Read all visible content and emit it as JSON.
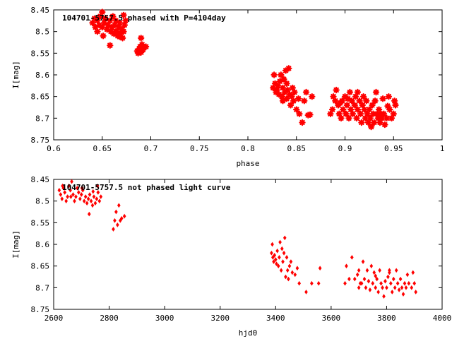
{
  "chart_data": [
    {
      "type": "scatter",
      "title": "104701-5757.5 phased with P=4104day",
      "xlabel": "phase",
      "ylabel": "I[mag]",
      "xlim": [
        0.6,
        1.0
      ],
      "ylim": [
        8.75,
        8.45
      ],
      "y_inverted": true,
      "x_ticks": [
        "0.6",
        "0.65",
        "0.7",
        "0.75",
        "0.8",
        "0.85",
        "0.9",
        "0.95",
        "1"
      ],
      "y_ticks": [
        "8.45",
        "8.5",
        "8.55",
        "8.6",
        "8.65",
        "8.7",
        "8.75"
      ],
      "marker": "star",
      "color": "#ff0000",
      "grid": false,
      "points": [
        [
          0.64,
          8.48
        ],
        [
          0.642,
          8.47
        ],
        [
          0.643,
          8.49
        ],
        [
          0.645,
          8.475
        ],
        [
          0.647,
          8.485
        ],
        [
          0.648,
          8.465
        ],
        [
          0.65,
          8.49
        ],
        [
          0.65,
          8.455
        ],
        [
          0.652,
          8.48
        ],
        [
          0.653,
          8.47
        ],
        [
          0.655,
          8.495
        ],
        [
          0.656,
          8.485
        ],
        [
          0.658,
          8.475
        ],
        [
          0.659,
          8.5
        ],
        [
          0.66,
          8.49
        ],
        [
          0.661,
          8.465
        ],
        [
          0.662,
          8.505
        ],
        [
          0.663,
          8.485
        ],
        [
          0.664,
          8.475
        ],
        [
          0.665,
          8.5
        ],
        [
          0.666,
          8.51
        ],
        [
          0.667,
          8.49
        ],
        [
          0.668,
          8.48
        ],
        [
          0.669,
          8.505
        ],
        [
          0.67,
          8.495
        ],
        [
          0.671,
          8.515
        ],
        [
          0.672,
          8.5
        ],
        [
          0.672,
          8.462
        ],
        [
          0.673,
          8.485
        ],
        [
          0.674,
          8.475
        ],
        [
          0.658,
          8.532
        ],
        [
          0.664,
          8.5
        ],
        [
          0.668,
          8.512
        ],
        [
          0.645,
          8.5
        ],
        [
          0.651,
          8.51
        ],
        [
          0.686,
          8.545
        ],
        [
          0.687,
          8.55
        ],
        [
          0.688,
          8.54
        ],
        [
          0.689,
          8.535
        ],
        [
          0.69,
          8.548
        ],
        [
          0.69,
          8.515
        ],
        [
          0.691,
          8.53
        ],
        [
          0.692,
          8.542
        ],
        [
          0.693,
          8.538
        ],
        [
          0.695,
          8.535
        ],
        [
          0.826,
          8.63
        ],
        [
          0.827,
          8.6
        ],
        [
          0.828,
          8.62
        ],
        [
          0.829,
          8.64
        ],
        [
          0.83,
          8.635
        ],
        [
          0.831,
          8.625
        ],
        [
          0.832,
          8.645
        ],
        [
          0.833,
          8.615
        ],
        [
          0.834,
          8.6
        ],
        [
          0.835,
          8.65
        ],
        [
          0.836,
          8.63
        ],
        [
          0.836,
          8.66
        ],
        [
          0.837,
          8.61
        ],
        [
          0.838,
          8.64
        ],
        [
          0.839,
          8.59
        ],
        [
          0.84,
          8.62
        ],
        [
          0.84,
          8.655
        ],
        [
          0.841,
          8.635
        ],
        [
          0.842,
          8.585
        ],
        [
          0.843,
          8.645
        ],
        [
          0.844,
          8.67
        ],
        [
          0.845,
          8.65
        ],
        [
          0.846,
          8.63
        ],
        [
          0.847,
          8.66
        ],
        [
          0.848,
          8.64
        ],
        [
          0.85,
          8.68
        ],
        [
          0.852,
          8.655
        ],
        [
          0.853,
          8.69
        ],
        [
          0.856,
          8.71
        ],
        [
          0.858,
          8.66
        ],
        [
          0.86,
          8.64
        ],
        [
          0.862,
          8.693
        ],
        [
          0.864,
          8.692
        ],
        [
          0.866,
          8.65
        ],
        [
          0.885,
          8.69
        ],
        [
          0.887,
          8.68
        ],
        [
          0.888,
          8.65
        ],
        [
          0.89,
          8.66
        ],
        [
          0.891,
          8.635
        ],
        [
          0.893,
          8.67
        ],
        [
          0.894,
          8.69
        ],
        [
          0.896,
          8.7
        ],
        [
          0.897,
          8.66
        ],
        [
          0.898,
          8.68
        ],
        [
          0.9,
          8.65
        ],
        [
          0.901,
          8.69
        ],
        [
          0.902,
          8.67
        ],
        [
          0.904,
          8.7
        ],
        [
          0.905,
          8.64
        ],
        [
          0.906,
          8.68
        ],
        [
          0.907,
          8.66
        ],
        [
          0.908,
          8.69
        ],
        [
          0.91,
          8.67
        ],
        [
          0.911,
          8.65
        ],
        [
          0.912,
          8.7
        ],
        [
          0.913,
          8.68
        ],
        [
          0.915,
          8.66
        ],
        [
          0.916,
          8.69
        ],
        [
          0.917,
          8.71
        ],
        [
          0.918,
          8.67
        ],
        [
          0.919,
          8.65
        ],
        [
          0.92,
          8.68
        ],
        [
          0.921,
          8.7
        ],
        [
          0.922,
          8.66
        ],
        [
          0.923,
          8.69
        ],
        [
          0.924,
          8.71
        ],
        [
          0.925,
          8.68
        ],
        [
          0.926,
          8.7
        ],
        [
          0.927,
          8.72
        ],
        [
          0.928,
          8.67
        ],
        [
          0.929,
          8.69
        ],
        [
          0.93,
          8.71
        ],
        [
          0.931,
          8.66
        ],
        [
          0.932,
          8.64
        ],
        [
          0.933,
          8.69
        ],
        [
          0.934,
          8.7
        ],
        [
          0.935,
          8.68
        ],
        [
          0.936,
          8.71
        ],
        [
          0.937,
          8.69
        ],
        [
          0.938,
          8.7
        ],
        [
          0.94,
          8.69
        ],
        [
          0.941,
          8.715
        ],
        [
          0.943,
          8.7
        ],
        [
          0.945,
          8.65
        ],
        [
          0.946,
          8.68
        ],
        [
          0.948,
          8.7
        ],
        [
          0.95,
          8.69
        ],
        [
          0.951,
          8.66
        ],
        [
          0.952,
          8.67
        ],
        [
          0.944,
          8.672
        ],
        [
          0.939,
          8.655
        ],
        [
          0.913,
          8.64
        ],
        [
          0.903,
          8.655
        ],
        [
          0.895,
          8.665
        ]
      ]
    },
    {
      "type": "scatter",
      "title": "104701-5757.5 not phased light curve",
      "xlabel": "hjd0",
      "ylabel": "I[mag]",
      "xlim": [
        2600,
        4000
      ],
      "ylim": [
        8.75,
        8.45
      ],
      "y_inverted": true,
      "x_ticks": [
        "2600",
        "2800",
        "3000",
        "3200",
        "3400",
        "3600",
        "3800",
        "4000"
      ],
      "y_ticks": [
        "8.45",
        "8.5",
        "8.55",
        "8.6",
        "8.65",
        "8.7",
        "8.75"
      ],
      "marker": "diamond",
      "color": "#ff0000",
      "grid": false,
      "points": [
        [
          2620,
          8.475
        ],
        [
          2625,
          8.485
        ],
        [
          2630,
          8.495
        ],
        [
          2635,
          8.47
        ],
        [
          2640,
          8.48
        ],
        [
          2645,
          8.5
        ],
        [
          2650,
          8.49
        ],
        [
          2655,
          8.465
        ],
        [
          2660,
          8.475
        ],
        [
          2665,
          8.455
        ],
        [
          2670,
          8.485
        ],
        [
          2675,
          8.5
        ],
        [
          2680,
          8.49
        ],
        [
          2685,
          8.47
        ],
        [
          2690,
          8.48
        ],
        [
          2695,
          8.495
        ],
        [
          2700,
          8.485
        ],
        [
          2705,
          8.475
        ],
        [
          2710,
          8.5
        ],
        [
          2715,
          8.49
        ],
        [
          2720,
          8.505
        ],
        [
          2725,
          8.495
        ],
        [
          2728,
          8.53
        ],
        [
          2730,
          8.485
        ],
        [
          2735,
          8.5
        ],
        [
          2740,
          8.51
        ],
        [
          2745,
          8.49
        ],
        [
          2750,
          8.505
        ],
        [
          2755,
          8.495
        ],
        [
          2758,
          8.465
        ],
        [
          2760,
          8.48
        ],
        [
          2765,
          8.5
        ],
        [
          2770,
          8.49
        ],
        [
          2632,
          8.465
        ],
        [
          2662,
          8.49
        ],
        [
          2702,
          8.47
        ],
        [
          2742,
          8.478
        ],
        [
          2815,
          8.565
        ],
        [
          2820,
          8.545
        ],
        [
          2825,
          8.525
        ],
        [
          2830,
          8.555
        ],
        [
          2835,
          8.51
        ],
        [
          2840,
          8.545
        ],
        [
          2845,
          8.54
        ],
        [
          2855,
          8.535
        ],
        [
          3385,
          8.62
        ],
        [
          3388,
          8.6
        ],
        [
          3390,
          8.63
        ],
        [
          3393,
          8.64
        ],
        [
          3396,
          8.625
        ],
        [
          3400,
          8.635
        ],
        [
          3403,
          8.645
        ],
        [
          3406,
          8.615
        ],
        [
          3410,
          8.65
        ],
        [
          3413,
          8.63
        ],
        [
          3416,
          8.595
        ],
        [
          3420,
          8.66
        ],
        [
          3423,
          8.61
        ],
        [
          3426,
          8.64
        ],
        [
          3430,
          8.62
        ],
        [
          3433,
          8.585
        ],
        [
          3436,
          8.675
        ],
        [
          3440,
          8.63
        ],
        [
          3443,
          8.66
        ],
        [
          3446,
          8.68
        ],
        [
          3450,
          8.65
        ],
        [
          3455,
          8.64
        ],
        [
          3460,
          8.665
        ],
        [
          3470,
          8.67
        ],
        [
          3478,
          8.655
        ],
        [
          3485,
          8.69
        ],
        [
          3510,
          8.71
        ],
        [
          3530,
          8.69
        ],
        [
          3555,
          8.69
        ],
        [
          3560,
          8.655
        ],
        [
          3650,
          8.69
        ],
        [
          3655,
          8.65
        ],
        [
          3665,
          8.68
        ],
        [
          3675,
          8.63
        ],
        [
          3685,
          8.68
        ],
        [
          3695,
          8.67
        ],
        [
          3700,
          8.66
        ],
        [
          3705,
          8.69
        ],
        [
          3710,
          8.69
        ],
        [
          3715,
          8.64
        ],
        [
          3720,
          8.68
        ],
        [
          3725,
          8.7
        ],
        [
          3730,
          8.66
        ],
        [
          3735,
          8.685
        ],
        [
          3740,
          8.705
        ],
        [
          3745,
          8.65
        ],
        [
          3750,
          8.69
        ],
        [
          3755,
          8.665
        ],
        [
          3760,
          8.7
        ],
        [
          3765,
          8.68
        ],
        [
          3770,
          8.71
        ],
        [
          3775,
          8.66
        ],
        [
          3780,
          8.69
        ],
        [
          3785,
          8.7
        ],
        [
          3790,
          8.72
        ],
        [
          3795,
          8.685
        ],
        [
          3800,
          8.7
        ],
        [
          3805,
          8.675
        ],
        [
          3810,
          8.66
        ],
        [
          3815,
          8.69
        ],
        [
          3820,
          8.71
        ],
        [
          3825,
          8.68
        ],
        [
          3830,
          8.7
        ],
        [
          3835,
          8.66
        ],
        [
          3840,
          8.69
        ],
        [
          3845,
          8.705
        ],
        [
          3850,
          8.68
        ],
        [
          3855,
          8.7
        ],
        [
          3860,
          8.715
        ],
        [
          3865,
          8.69
        ],
        [
          3870,
          8.7
        ],
        [
          3875,
          8.67
        ],
        [
          3880,
          8.69
        ],
        [
          3890,
          8.7
        ],
        [
          3895,
          8.665
        ],
        [
          3900,
          8.69
        ],
        [
          3905,
          8.71
        ],
        [
          3810,
          8.665
        ],
        [
          3700,
          8.7
        ],
        [
          3760,
          8.673
        ]
      ]
    }
  ]
}
